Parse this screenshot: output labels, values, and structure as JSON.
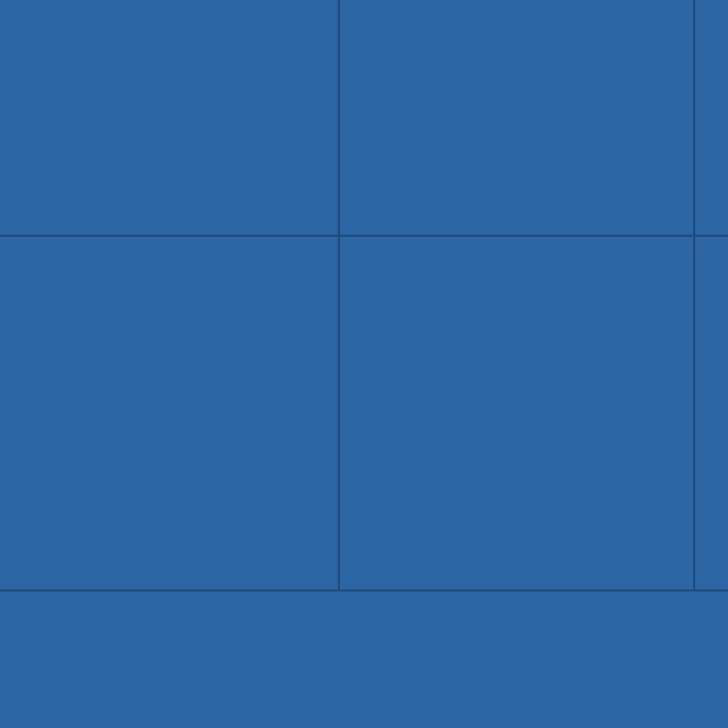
{
  "colors": {
    "background": "#2c66a4",
    "grid_line": "#1f4c7c"
  }
}
